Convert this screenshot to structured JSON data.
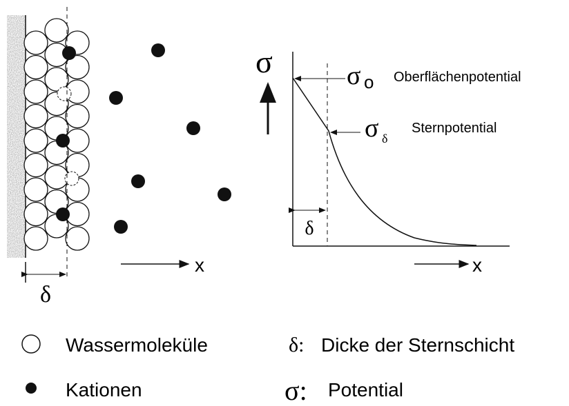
{
  "left_panel": {
    "thickness_label": "δ",
    "axis_label": "x"
  },
  "right_panel": {
    "y_label": "σ",
    "surface": {
      "symbol": "σ",
      "subscript": "o",
      "label": "Oberflächenpotential"
    },
    "stern": {
      "symbol": "σ",
      "subscript": "δ",
      "label": "Sternpotential"
    },
    "thickness_label": "δ",
    "axis_label": "x"
  },
  "legend": [
    {
      "label": "Wassermoleküle"
    },
    {
      "label": "Kationen"
    },
    {
      "symbol": "δ:",
      "label": "Dicke der Sternschicht"
    },
    {
      "symbol": "σ:",
      "label": "Potential"
    }
  ]
}
